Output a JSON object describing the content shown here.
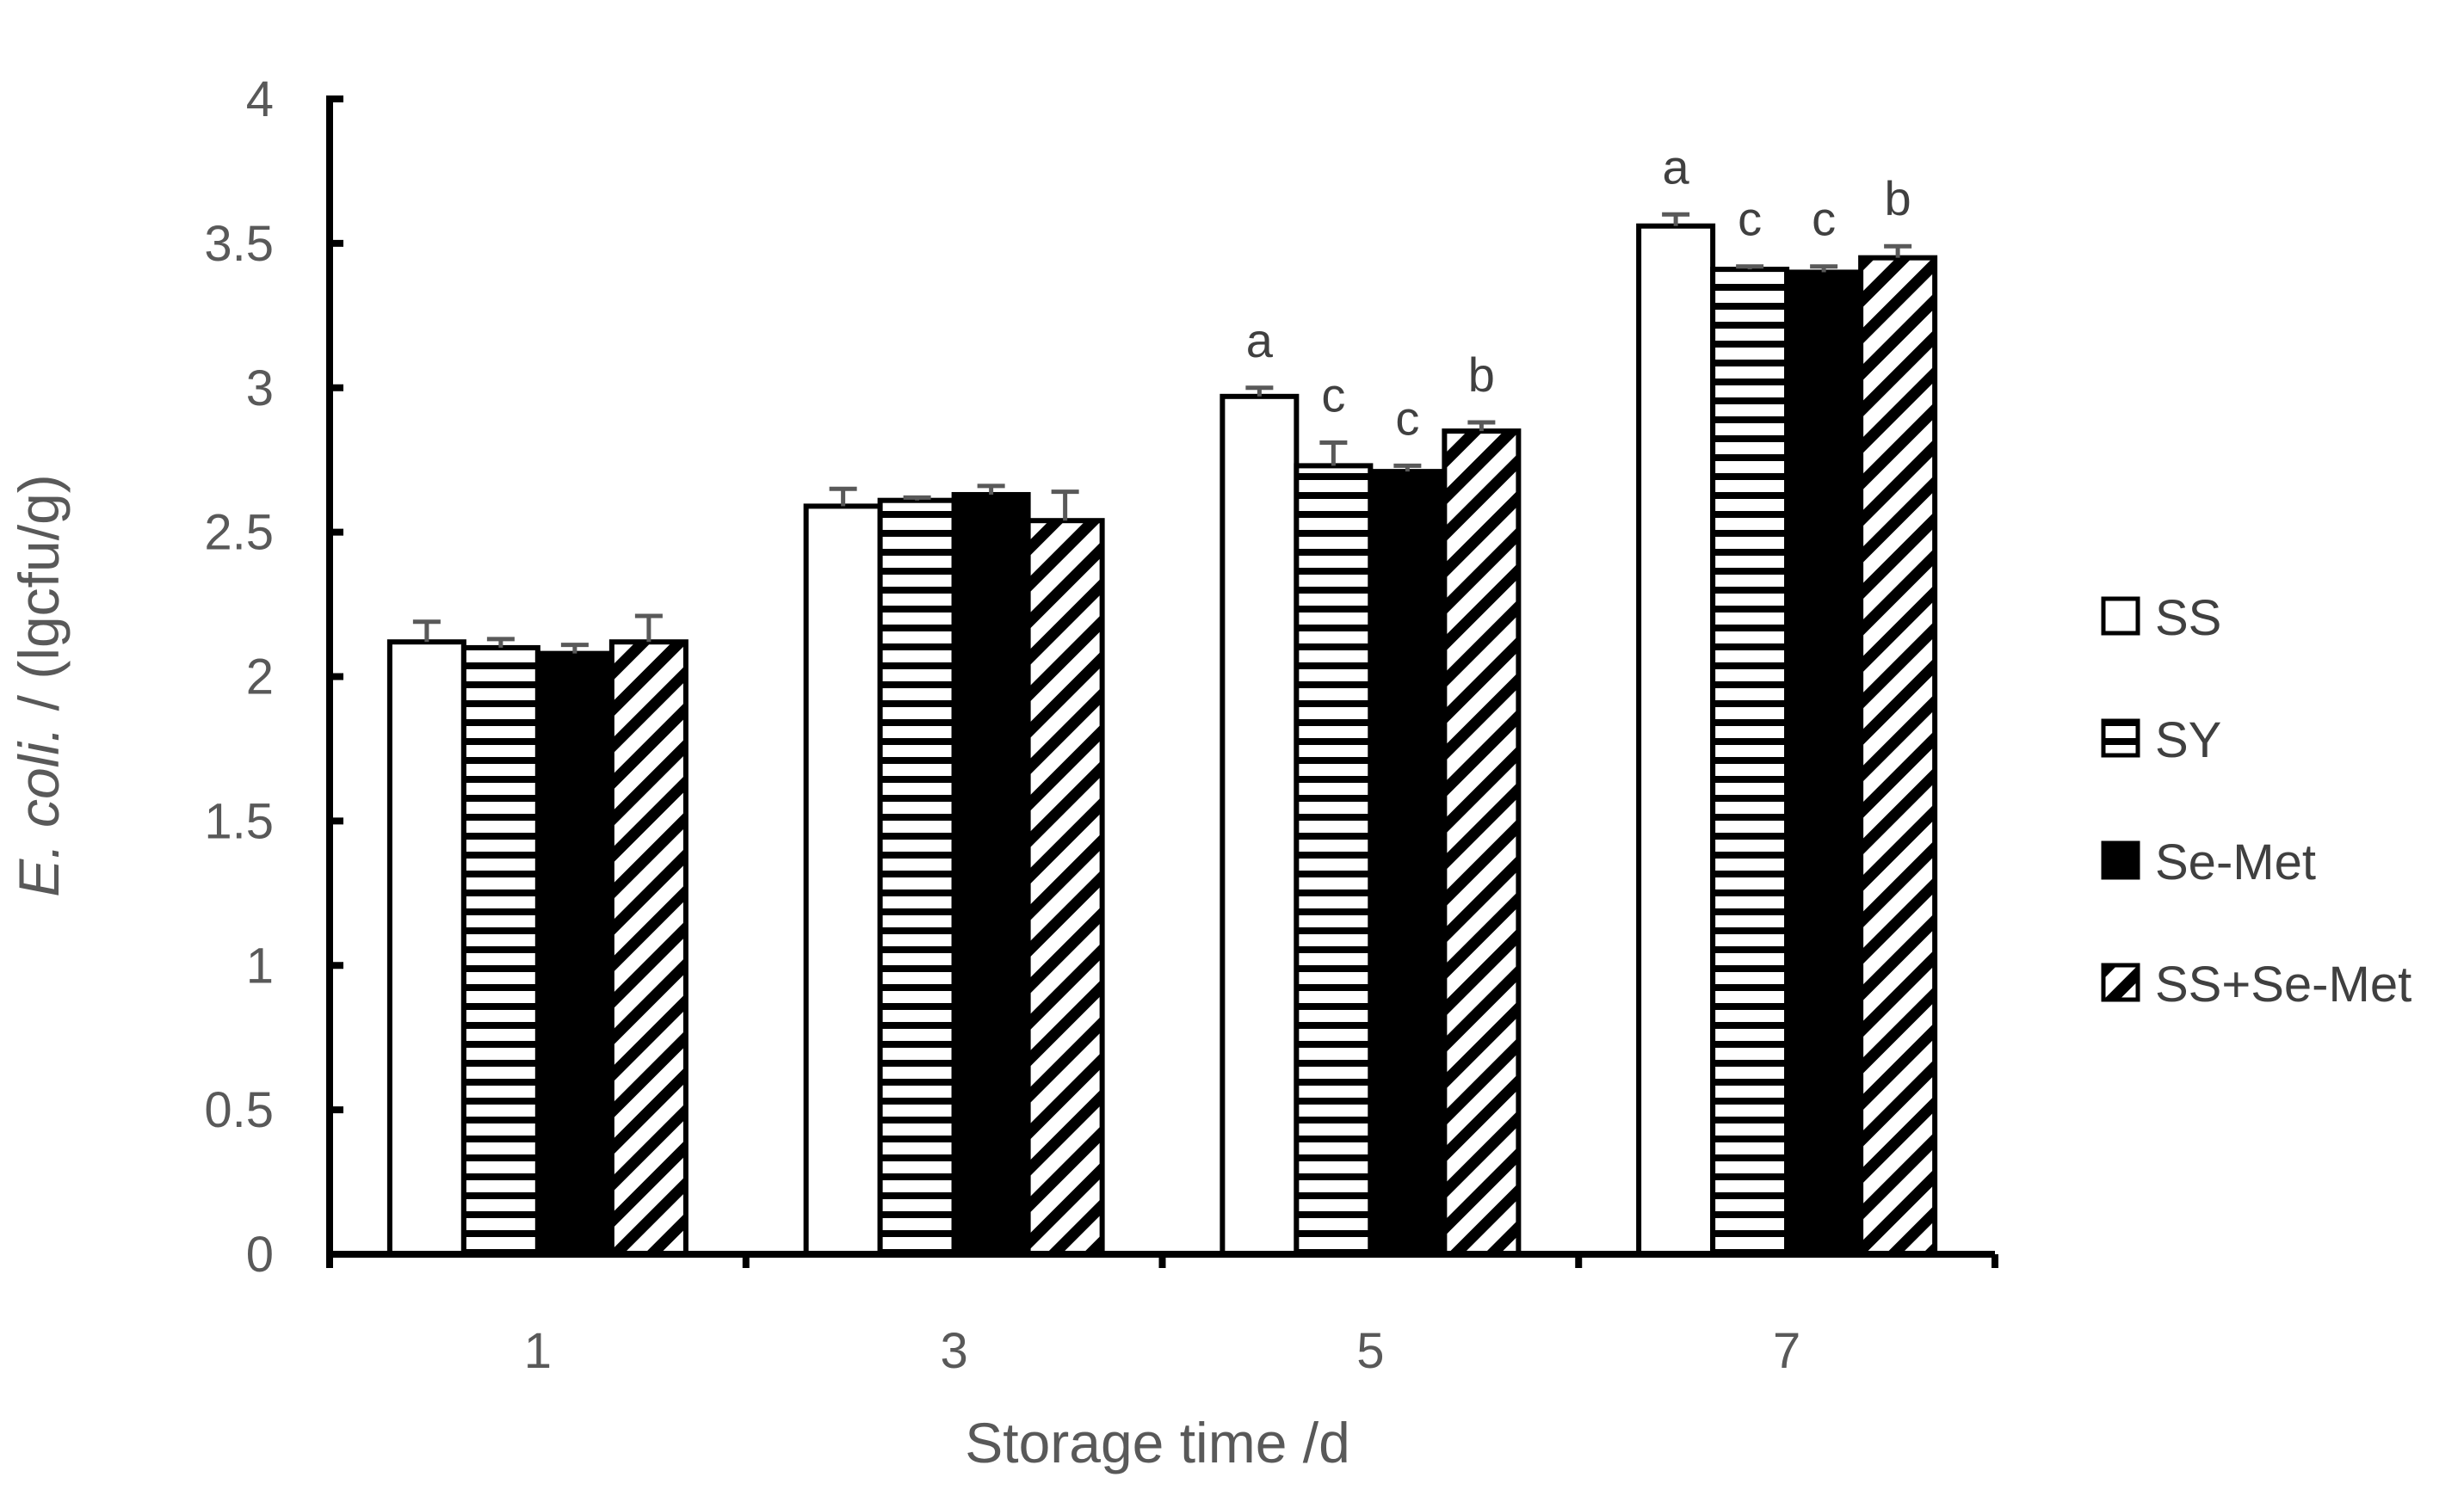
{
  "chart_data": {
    "type": "bar",
    "xlabel": "Storage time /d",
    "ylabel_italic": "E. coli.",
    "ylabel_rest": " / (lgcfu/g)",
    "ylim": [
      0,
      4
    ],
    "y_ticks": [
      "0",
      "0.5",
      "1",
      "1.5",
      "2",
      "2.5",
      "3",
      "3.5",
      "4"
    ],
    "categories": [
      "1",
      "3",
      "5",
      "7"
    ],
    "grid": false,
    "legend_position": "right",
    "series": [
      {
        "name": "SS",
        "pattern": "white",
        "values": [
          2.12,
          2.59,
          2.97,
          3.56
        ],
        "errors": [
          0.07,
          0.06,
          0.03,
          0.04
        ],
        "labels": [
          "",
          "",
          "a",
          "a"
        ]
      },
      {
        "name": "SY",
        "pattern": "horizontal-stripes",
        "values": [
          2.1,
          2.61,
          2.73,
          3.41
        ],
        "errors": [
          0.03,
          0.01,
          0.08,
          0.01
        ],
        "labels": [
          "",
          "",
          "c",
          "c"
        ]
      },
      {
        "name": "Se-Met",
        "pattern": "solid-black",
        "values": [
          2.08,
          2.63,
          2.71,
          3.4
        ],
        "errors": [
          0.03,
          0.03,
          0.02,
          0.02
        ],
        "labels": [
          "",
          "",
          "c",
          "c"
        ]
      },
      {
        "name": "SS+Se-Met",
        "pattern": "diagonal-stripes",
        "values": [
          2.12,
          2.54,
          2.85,
          3.45
        ],
        "errors": [
          0.09,
          0.1,
          0.03,
          0.04
        ],
        "labels": [
          "",
          "",
          "b",
          "b"
        ]
      }
    ]
  }
}
